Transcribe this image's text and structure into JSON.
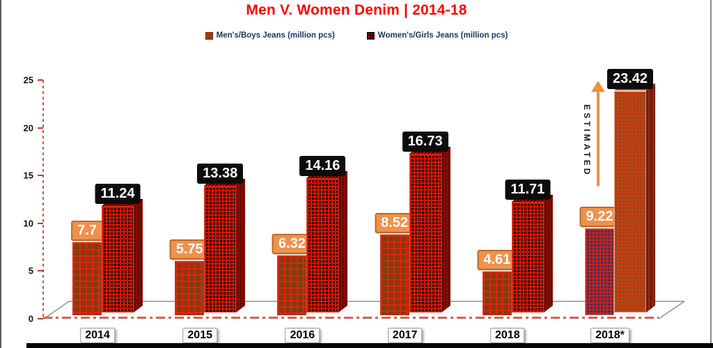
{
  "title": "Men V. Women Denim | 2014-18",
  "legend": {
    "items": [
      {
        "label": "Men's/Boys Jeans (million pcs)",
        "swatch": "men-swatch"
      },
      {
        "label": "Women's/Girls Jeans (million pcs)",
        "swatch": "women-swatch"
      }
    ]
  },
  "annotation": "ESTIMATED",
  "colors": {
    "title": "#FF0000",
    "legend_text": "#17375E",
    "men_bar_fill": "#7C3F0E",
    "men_bar_grid": "#E32212",
    "women_bar_fill": "#0A0505",
    "women_bar_grid": "#D81400",
    "estimated_men_fill": "#2E3766",
    "estimated_women_fill": "#CC3A10",
    "men_label_box": "#F0914C",
    "women_label_box": "#0C0C0C",
    "axis_dash": "#C0594C",
    "arrow": "#E8953F"
  },
  "chart_data": {
    "type": "bar",
    "title": "Men V. Women Denim | 2014-18",
    "categories": [
      "2014",
      "2015",
      "2016",
      "2017",
      "2018",
      "2018*"
    ],
    "series": [
      {
        "name": "Men's/Boys Jeans (million pcs)",
        "values": [
          7.7,
          5.75,
          6.32,
          8.52,
          4.61,
          9.22
        ]
      },
      {
        "name": "Women's/Girls Jeans (million pcs)",
        "values": [
          11.24,
          13.38,
          14.16,
          16.73,
          11.71,
          23.42
        ]
      }
    ],
    "xlabel": "",
    "ylabel": "",
    "ylim": [
      0,
      25
    ],
    "yticks": [
      0,
      5,
      10,
      15,
      20,
      25
    ],
    "grid": false,
    "legend_position": "top",
    "annotation": "ESTIMATED (applies to 2018* group)",
    "style_3d": true
  }
}
